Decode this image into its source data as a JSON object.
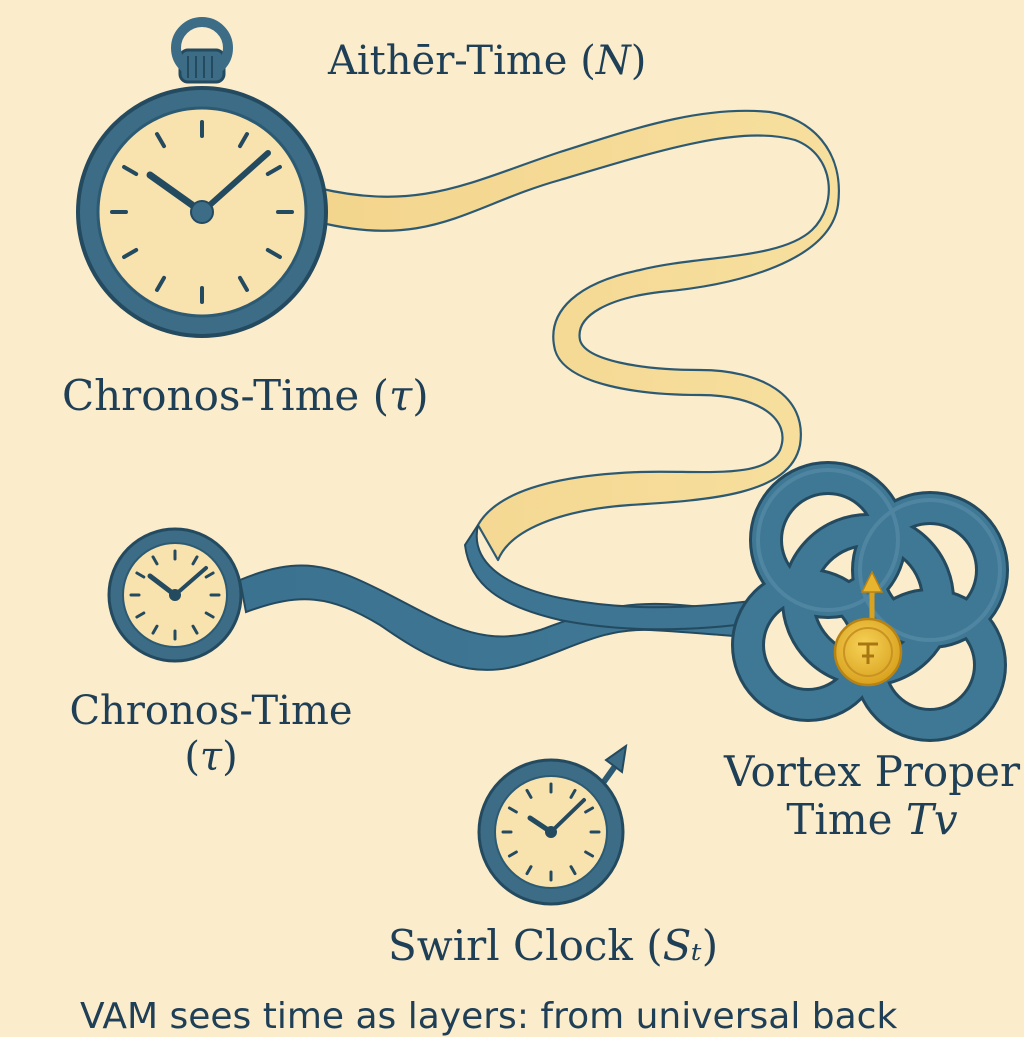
{
  "labels": {
    "aither": {
      "text": "Aithēr-Time (",
      "symbol": "N",
      "close": ")"
    },
    "chronos_large": {
      "text": "Chronos-Time (",
      "symbol": "τ",
      "close": ")"
    },
    "chronos_small": {
      "line1": "Chronos-Time",
      "line2_open": "(",
      "symbol": "τ",
      "line2_close": ")"
    },
    "vortex": {
      "line1": "Vortex Proper",
      "line2": "Time ",
      "symbol": "Tv"
    },
    "swirl": {
      "text": "Swirl Clock (",
      "symbol": "Sₜ",
      "close": ")"
    }
  },
  "caption": "VAM sees time as layers: from universal back",
  "icons": {
    "large_clock": "pocket-watch-icon",
    "small_clock": "clock-icon",
    "swirl_clock": "clock-with-arrow-icon",
    "knot": "vortex-knot-icon",
    "coin": "gold-coin-icon"
  },
  "colors": {
    "background": "#fbeccb",
    "ink": "#1f3f57",
    "clock_frame": "#3c6c86",
    "clock_face": "#f8e2ae",
    "ribbon_light": "#f6d98f",
    "ribbon_dark": "#3f7590",
    "coin": "#e8b531"
  }
}
